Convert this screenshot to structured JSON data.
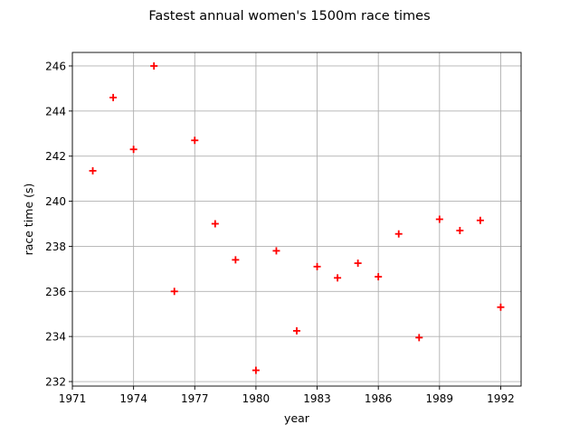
{
  "chart_data": {
    "type": "scatter",
    "title": "Fastest annual women's 1500m race times",
    "xlabel": "year",
    "ylabel": "race time (s)",
    "xlim": [
      1971,
      1993
    ],
    "ylim": [
      231.8,
      246.6
    ],
    "xticks": [
      1971,
      1974,
      1977,
      1980,
      1983,
      1986,
      1989,
      1992
    ],
    "yticks": [
      232,
      234,
      236,
      238,
      240,
      242,
      244,
      246
    ],
    "grid": true,
    "marker": "plus",
    "marker_color": "#ff0000",
    "series": [
      {
        "x": [
          1972,
          1973,
          1974,
          1975,
          1976,
          1977,
          1978,
          1979,
          1980,
          1981,
          1982,
          1983,
          1984,
          1985,
          1986,
          1987,
          1988,
          1989,
          1990,
          1991,
          1992
        ],
        "y": [
          241.35,
          244.6,
          242.3,
          246.0,
          236.0,
          242.7,
          239.0,
          237.4,
          232.5,
          237.8,
          234.25,
          237.1,
          236.6,
          237.25,
          236.65,
          238.55,
          233.95,
          239.2,
          238.7,
          239.15,
          235.3
        ]
      }
    ]
  }
}
